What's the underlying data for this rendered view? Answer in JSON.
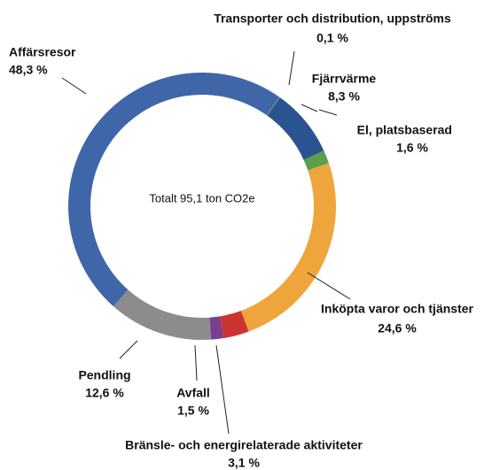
{
  "chart_data": {
    "type": "donut",
    "annotation": "Totalt 95,1 ton CO2e",
    "categories": [
      "Affärsresor",
      "Transporter och distribution, uppströms",
      "Fjärrvärme",
      "El, platsbaserad",
      "Inköpta varor och tjänster",
      "Bränsle- och energirelaterade aktiviteter",
      "Avfall",
      "Pendling"
    ],
    "values": [
      48.3,
      0.1,
      8.3,
      1.6,
      24.6,
      3.1,
      1.5,
      12.6
    ],
    "value_labels": [
      "48,3 %",
      "0,1 %",
      "8,3 %",
      "1,6 %",
      "24,6 %",
      "3,1 %",
      "1,5 %",
      "12,6 %"
    ],
    "colors": [
      "#3f66a9",
      "#5b9e4b",
      "#2c5391",
      "#5b9e4b",
      "#eea53b",
      "#cc3333",
      "#7b3f8f",
      "#8c8c8c"
    ]
  }
}
